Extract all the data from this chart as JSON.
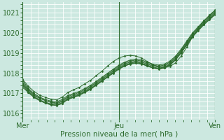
{
  "bg_color": "#cce8e0",
  "grid_color": "#ffffff",
  "line_color": "#2d6b2d",
  "marker_color": "#2d6b2d",
  "xlabel": "Pression niveau de la mer( hPa )",
  "yticks": [
    1016,
    1017,
    1018,
    1019,
    1020,
    1021
  ],
  "xtick_labels": [
    "Mer",
    "Jeu",
    "Ven"
  ],
  "xtick_positions": [
    0,
    48,
    96
  ],
  "xlim": [
    0,
    96
  ],
  "ylim": [
    1015.7,
    1021.5
  ],
  "figsize": [
    3.2,
    2.0
  ],
  "dpi": 100,
  "series": [
    [
      1017.5,
      1017.15,
      1016.9,
      1016.75,
      1016.65,
      1016.55,
      1016.5,
      1016.6,
      1016.8,
      1016.9,
      1017.0,
      1017.15,
      1017.3,
      1017.5,
      1017.7,
      1017.9,
      1018.1,
      1018.3,
      1018.45,
      1018.55,
      1018.6,
      1018.55,
      1018.45,
      1018.35,
      1018.3,
      1018.35,
      1018.5,
      1018.75,
      1019.1,
      1019.5,
      1019.9,
      1020.2,
      1020.5,
      1020.75,
      1021.0
    ],
    [
      1017.3,
      1017.05,
      1016.8,
      1016.65,
      1016.52,
      1016.45,
      1016.42,
      1016.5,
      1016.7,
      1016.8,
      1016.9,
      1017.05,
      1017.2,
      1017.4,
      1017.6,
      1017.8,
      1018.0,
      1018.2,
      1018.35,
      1018.45,
      1018.5,
      1018.45,
      1018.35,
      1018.25,
      1018.2,
      1018.25,
      1018.4,
      1018.65,
      1019.0,
      1019.4,
      1019.8,
      1020.1,
      1020.4,
      1020.65,
      1020.9
    ],
    [
      1017.45,
      1017.1,
      1016.85,
      1016.68,
      1016.57,
      1016.48,
      1016.45,
      1016.55,
      1016.75,
      1016.85,
      1016.95,
      1017.1,
      1017.25,
      1017.45,
      1017.65,
      1017.85,
      1018.05,
      1018.25,
      1018.4,
      1018.5,
      1018.55,
      1018.5,
      1018.4,
      1018.3,
      1018.25,
      1018.3,
      1018.45,
      1018.7,
      1019.05,
      1019.45,
      1019.85,
      1020.15,
      1020.45,
      1020.7,
      1020.95
    ],
    [
      1017.55,
      1017.2,
      1016.95,
      1016.78,
      1016.65,
      1016.57,
      1016.53,
      1016.65,
      1016.85,
      1016.95,
      1017.05,
      1017.2,
      1017.35,
      1017.55,
      1017.75,
      1017.95,
      1018.15,
      1018.35,
      1018.5,
      1018.6,
      1018.65,
      1018.6,
      1018.5,
      1018.4,
      1018.35,
      1018.4,
      1018.55,
      1018.8,
      1019.15,
      1019.55,
      1019.95,
      1020.25,
      1020.55,
      1020.8,
      1021.05
    ],
    [
      1017.65,
      1017.25,
      1017.0,
      1016.82,
      1016.7,
      1016.62,
      1016.58,
      1016.7,
      1016.9,
      1017.0,
      1017.1,
      1017.25,
      1017.4,
      1017.6,
      1017.8,
      1018.0,
      1018.2,
      1018.4,
      1018.55,
      1018.65,
      1018.7,
      1018.65,
      1018.55,
      1018.45,
      1018.4,
      1018.45,
      1018.6,
      1018.85,
      1019.2,
      1019.6,
      1020.0,
      1020.3,
      1020.6,
      1020.85,
      1021.1
    ],
    [
      1017.4,
      1017.05,
      1016.82,
      1016.65,
      1016.52,
      1016.43,
      1016.4,
      1016.5,
      1016.72,
      1016.82,
      1016.92,
      1017.07,
      1017.22,
      1017.42,
      1017.62,
      1017.82,
      1018.02,
      1018.22,
      1018.37,
      1018.47,
      1018.52,
      1018.47,
      1018.37,
      1018.27,
      1018.22,
      1018.27,
      1018.42,
      1018.67,
      1019.02,
      1019.42,
      1019.82,
      1020.12,
      1020.42,
      1020.67,
      1020.92
    ],
    [
      1017.7,
      1017.35,
      1017.1,
      1016.92,
      1016.8,
      1016.72,
      1016.68,
      1016.82,
      1017.05,
      1017.18,
      1017.3,
      1017.48,
      1017.65,
      1017.88,
      1018.1,
      1018.35,
      1018.58,
      1018.75,
      1018.85,
      1018.88,
      1018.85,
      1018.75,
      1018.58,
      1018.42,
      1018.32,
      1018.28,
      1018.32,
      1018.52,
      1018.85,
      1019.3,
      1019.8,
      1020.2,
      1020.58,
      1020.88,
      1021.12
    ]
  ]
}
